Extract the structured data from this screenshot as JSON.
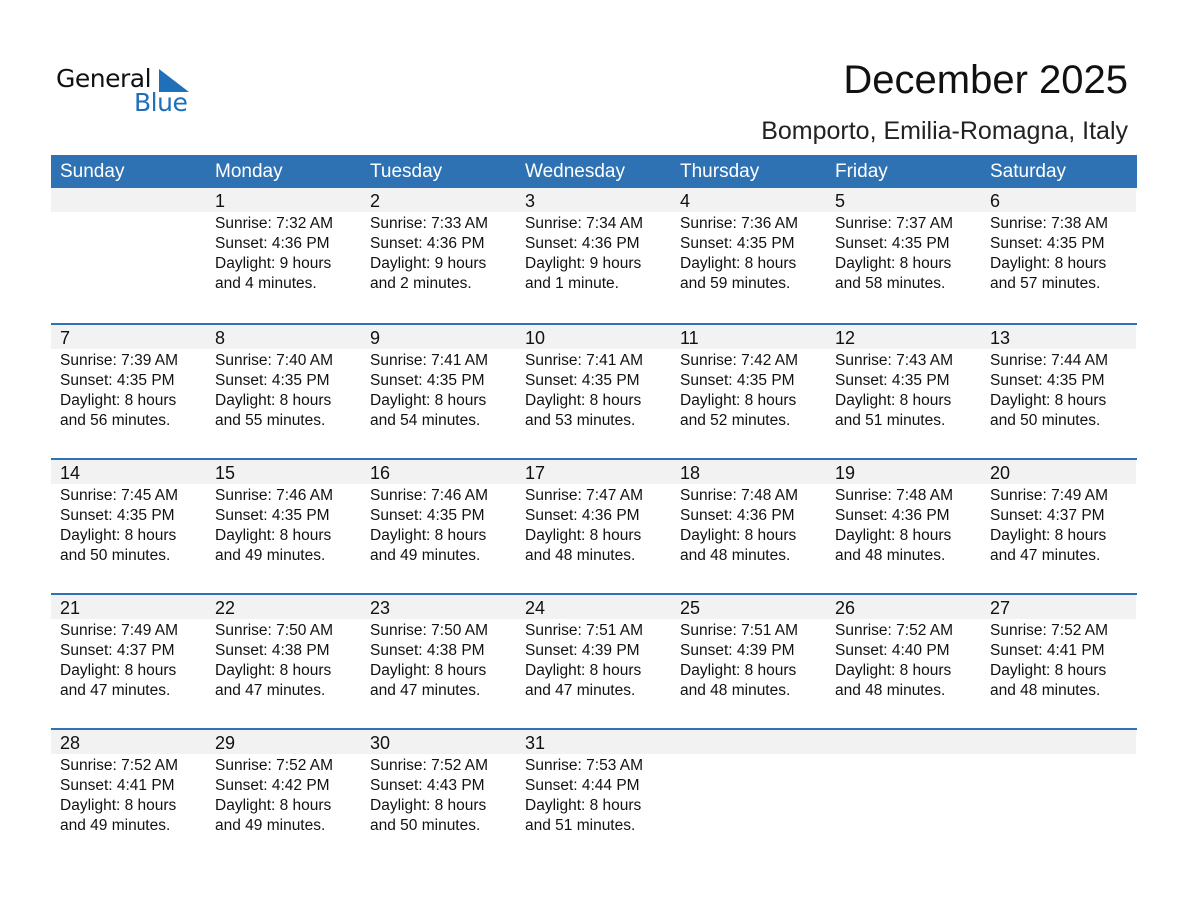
{
  "logo": {
    "general": "General",
    "blue": "Blue"
  },
  "title": "December 2025",
  "location": "Bomporto, Emilia-Romagna, Italy",
  "weekdays": [
    "Sunday",
    "Monday",
    "Tuesday",
    "Wednesday",
    "Thursday",
    "Friday",
    "Saturday"
  ],
  "weeks": [
    [
      null,
      {
        "day": "1",
        "sunrise": "Sunrise: 7:32 AM",
        "sunset": "Sunset: 4:36 PM",
        "daylight": "Daylight: 9 hours",
        "minutes": "and 4 minutes."
      },
      {
        "day": "2",
        "sunrise": "Sunrise: 7:33 AM",
        "sunset": "Sunset: 4:36 PM",
        "daylight": "Daylight: 9 hours",
        "minutes": "and 2 minutes."
      },
      {
        "day": "3",
        "sunrise": "Sunrise: 7:34 AM",
        "sunset": "Sunset: 4:36 PM",
        "daylight": "Daylight: 9 hours",
        "minutes": "and 1 minute."
      },
      {
        "day": "4",
        "sunrise": "Sunrise: 7:36 AM",
        "sunset": "Sunset: 4:35 PM",
        "daylight": "Daylight: 8 hours",
        "minutes": "and 59 minutes."
      },
      {
        "day": "5",
        "sunrise": "Sunrise: 7:37 AM",
        "sunset": "Sunset: 4:35 PM",
        "daylight": "Daylight: 8 hours",
        "minutes": "and 58 minutes."
      },
      {
        "day": "6",
        "sunrise": "Sunrise: 7:38 AM",
        "sunset": "Sunset: 4:35 PM",
        "daylight": "Daylight: 8 hours",
        "minutes": "and 57 minutes."
      }
    ],
    [
      {
        "day": "7",
        "sunrise": "Sunrise: 7:39 AM",
        "sunset": "Sunset: 4:35 PM",
        "daylight": "Daylight: 8 hours",
        "minutes": "and 56 minutes."
      },
      {
        "day": "8",
        "sunrise": "Sunrise: 7:40 AM",
        "sunset": "Sunset: 4:35 PM",
        "daylight": "Daylight: 8 hours",
        "minutes": "and 55 minutes."
      },
      {
        "day": "9",
        "sunrise": "Sunrise: 7:41 AM",
        "sunset": "Sunset: 4:35 PM",
        "daylight": "Daylight: 8 hours",
        "minutes": "and 54 minutes."
      },
      {
        "day": "10",
        "sunrise": "Sunrise: 7:41 AM",
        "sunset": "Sunset: 4:35 PM",
        "daylight": "Daylight: 8 hours",
        "minutes": "and 53 minutes."
      },
      {
        "day": "11",
        "sunrise": "Sunrise: 7:42 AM",
        "sunset": "Sunset: 4:35 PM",
        "daylight": "Daylight: 8 hours",
        "minutes": "and 52 minutes."
      },
      {
        "day": "12",
        "sunrise": "Sunrise: 7:43 AM",
        "sunset": "Sunset: 4:35 PM",
        "daylight": "Daylight: 8 hours",
        "minutes": "and 51 minutes."
      },
      {
        "day": "13",
        "sunrise": "Sunrise: 7:44 AM",
        "sunset": "Sunset: 4:35 PM",
        "daylight": "Daylight: 8 hours",
        "minutes": "and 50 minutes."
      }
    ],
    [
      {
        "day": "14",
        "sunrise": "Sunrise: 7:45 AM",
        "sunset": "Sunset: 4:35 PM",
        "daylight": "Daylight: 8 hours",
        "minutes": "and 50 minutes."
      },
      {
        "day": "15",
        "sunrise": "Sunrise: 7:46 AM",
        "sunset": "Sunset: 4:35 PM",
        "daylight": "Daylight: 8 hours",
        "minutes": "and 49 minutes."
      },
      {
        "day": "16",
        "sunrise": "Sunrise: 7:46 AM",
        "sunset": "Sunset: 4:35 PM",
        "daylight": "Daylight: 8 hours",
        "minutes": "and 49 minutes."
      },
      {
        "day": "17",
        "sunrise": "Sunrise: 7:47 AM",
        "sunset": "Sunset: 4:36 PM",
        "daylight": "Daylight: 8 hours",
        "minutes": "and 48 minutes."
      },
      {
        "day": "18",
        "sunrise": "Sunrise: 7:48 AM",
        "sunset": "Sunset: 4:36 PM",
        "daylight": "Daylight: 8 hours",
        "minutes": "and 48 minutes."
      },
      {
        "day": "19",
        "sunrise": "Sunrise: 7:48 AM",
        "sunset": "Sunset: 4:36 PM",
        "daylight": "Daylight: 8 hours",
        "minutes": "and 48 minutes."
      },
      {
        "day": "20",
        "sunrise": "Sunrise: 7:49 AM",
        "sunset": "Sunset: 4:37 PM",
        "daylight": "Daylight: 8 hours",
        "minutes": "and 47 minutes."
      }
    ],
    [
      {
        "day": "21",
        "sunrise": "Sunrise: 7:49 AM",
        "sunset": "Sunset: 4:37 PM",
        "daylight": "Daylight: 8 hours",
        "minutes": "and 47 minutes."
      },
      {
        "day": "22",
        "sunrise": "Sunrise: 7:50 AM",
        "sunset": "Sunset: 4:38 PM",
        "daylight": "Daylight: 8 hours",
        "minutes": "and 47 minutes."
      },
      {
        "day": "23",
        "sunrise": "Sunrise: 7:50 AM",
        "sunset": "Sunset: 4:38 PM",
        "daylight": "Daylight: 8 hours",
        "minutes": "and 47 minutes."
      },
      {
        "day": "24",
        "sunrise": "Sunrise: 7:51 AM",
        "sunset": "Sunset: 4:39 PM",
        "daylight": "Daylight: 8 hours",
        "minutes": "and 47 minutes."
      },
      {
        "day": "25",
        "sunrise": "Sunrise: 7:51 AM",
        "sunset": "Sunset: 4:39 PM",
        "daylight": "Daylight: 8 hours",
        "minutes": "and 48 minutes."
      },
      {
        "day": "26",
        "sunrise": "Sunrise: 7:52 AM",
        "sunset": "Sunset: 4:40 PM",
        "daylight": "Daylight: 8 hours",
        "minutes": "and 48 minutes."
      },
      {
        "day": "27",
        "sunrise": "Sunrise: 7:52 AM",
        "sunset": "Sunset: 4:41 PM",
        "daylight": "Daylight: 8 hours",
        "minutes": "and 48 minutes."
      }
    ],
    [
      {
        "day": "28",
        "sunrise": "Sunrise: 7:52 AM",
        "sunset": "Sunset: 4:41 PM",
        "daylight": "Daylight: 8 hours",
        "minutes": "and 49 minutes."
      },
      {
        "day": "29",
        "sunrise": "Sunrise: 7:52 AM",
        "sunset": "Sunset: 4:42 PM",
        "daylight": "Daylight: 8 hours",
        "minutes": "and 49 minutes."
      },
      {
        "day": "30",
        "sunrise": "Sunrise: 7:52 AM",
        "sunset": "Sunset: 4:43 PM",
        "daylight": "Daylight: 8 hours",
        "minutes": "and 50 minutes."
      },
      {
        "day": "31",
        "sunrise": "Sunrise: 7:53 AM",
        "sunset": "Sunset: 4:44 PM",
        "daylight": "Daylight: 8 hours",
        "minutes": "and 51 minutes."
      },
      null,
      null,
      null
    ]
  ],
  "colors": {
    "header": "#2e72b4",
    "brand": "#1f6fb9",
    "dayband": "#f2f2f2"
  }
}
